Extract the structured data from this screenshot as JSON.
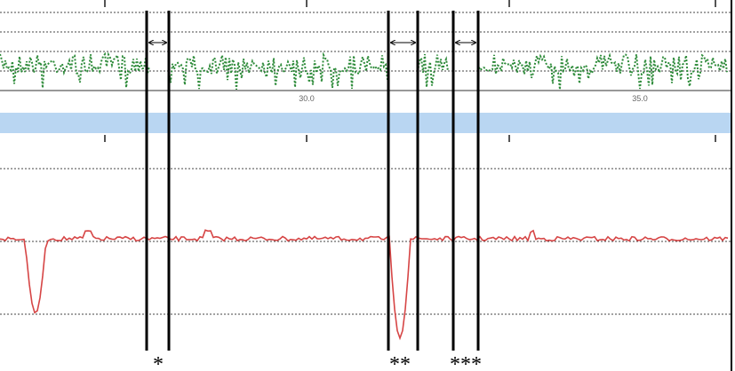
{
  "axis_labels": [
    "30.0",
    "35.0"
  ],
  "markers": [
    "*",
    "**",
    "***"
  ]
}
